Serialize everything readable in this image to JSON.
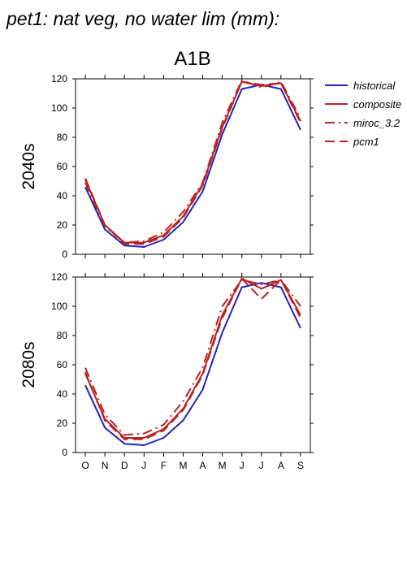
{
  "page": {
    "title": "pet1: nat veg, no water lim (mm):"
  },
  "chart_data": {
    "type": "line",
    "scenario": "A1B",
    "categories": [
      "O",
      "N",
      "D",
      "J",
      "F",
      "M",
      "A",
      "M",
      "J",
      "J",
      "A",
      "S"
    ],
    "ylim": [
      0,
      120
    ],
    "yticks": [
      0,
      20,
      40,
      60,
      80,
      100,
      120
    ],
    "legend": {
      "placement": "right",
      "entries": [
        "historical",
        "composite",
        "miroc_3.2",
        "pcm1"
      ]
    },
    "colors": {
      "historical": "#2222bb",
      "scenario": "#bb2222"
    },
    "panels": [
      {
        "ylabel": "2040s",
        "series": [
          {
            "name": "historical",
            "style": "solid",
            "color": "#2222bb",
            "values": [
              46,
              17,
              6,
              5,
              10,
              22,
              43,
              82,
              113,
              116,
              113,
              85
            ]
          },
          {
            "name": "composite",
            "style": "solid",
            "color": "#bb2222",
            "values": [
              51,
              20,
              8,
              8,
              13,
              26,
              48,
              87,
              118,
              115,
              117,
              91
            ]
          },
          {
            "name": "miroc_3.2",
            "style": "dashdot",
            "color": "#bb2222",
            "values": [
              49,
              19,
              8,
              9,
              15,
              29,
              49,
              90,
              119,
              114,
              118,
              93
            ]
          },
          {
            "name": "pcm1",
            "style": "dash",
            "color": "#bb2222",
            "values": [
              52,
              20,
              7,
              7,
              12,
              25,
              47,
              86,
              118,
              116,
              117,
              90
            ]
          }
        ]
      },
      {
        "ylabel": "2080s",
        "series": [
          {
            "name": "historical",
            "style": "solid",
            "color": "#2222bb",
            "values": [
              46,
              17,
              6,
              5,
              10,
              22,
              43,
              82,
              113,
              116,
              113,
              85
            ]
          },
          {
            "name": "composite",
            "style": "solid",
            "color": "#bb2222",
            "values": [
              54,
              23,
              10,
              10,
              16,
              30,
              54,
              94,
              119,
              112,
              118,
              94
            ]
          },
          {
            "name": "miroc_3.2",
            "style": "dashdot",
            "color": "#bb2222",
            "values": [
              58,
              26,
              12,
              13,
              19,
              35,
              58,
              100,
              118,
              115,
              118,
              100
            ]
          },
          {
            "name": "pcm1",
            "style": "dash",
            "color": "#bb2222",
            "values": [
              55,
              22,
              9,
              9,
              15,
              29,
              53,
              92,
              119,
              105,
              118,
              92
            ]
          }
        ]
      }
    ]
  }
}
